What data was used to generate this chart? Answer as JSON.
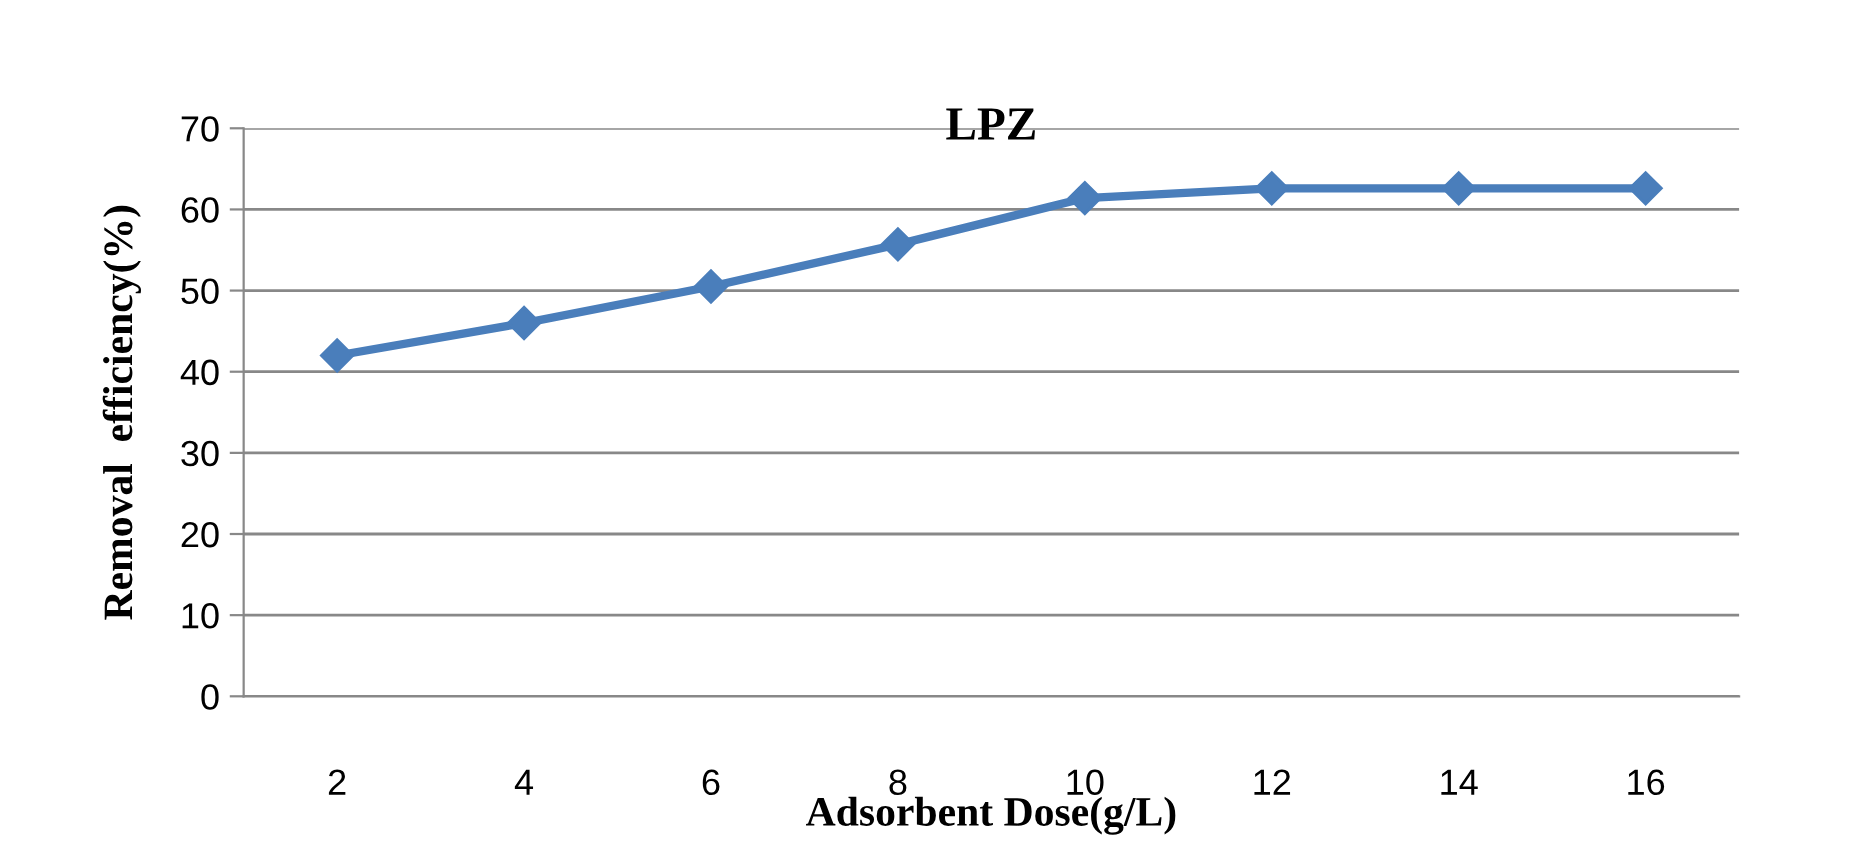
{
  "chart_data": {
    "type": "line",
    "title": "LPZ",
    "xlabel": "Adsorbent Dose(g/L)",
    "ylabel": "Removal  efficiency(%)",
    "categories": [
      "2",
      "4",
      "6",
      "8",
      "10",
      "12",
      "14",
      "16"
    ],
    "series": [
      {
        "color": "#4a7ebb",
        "values": [
          42,
          46,
          50.5,
          55.7,
          61.4,
          62.6,
          62.6,
          62.6
        ]
      }
    ],
    "ylim": [
      0,
      70
    ],
    "yticks": [
      0,
      10,
      20,
      30,
      40,
      50,
      60,
      70
    ],
    "grid": "y",
    "marker": "diamond",
    "line_style": "solid",
    "legend": false
  }
}
